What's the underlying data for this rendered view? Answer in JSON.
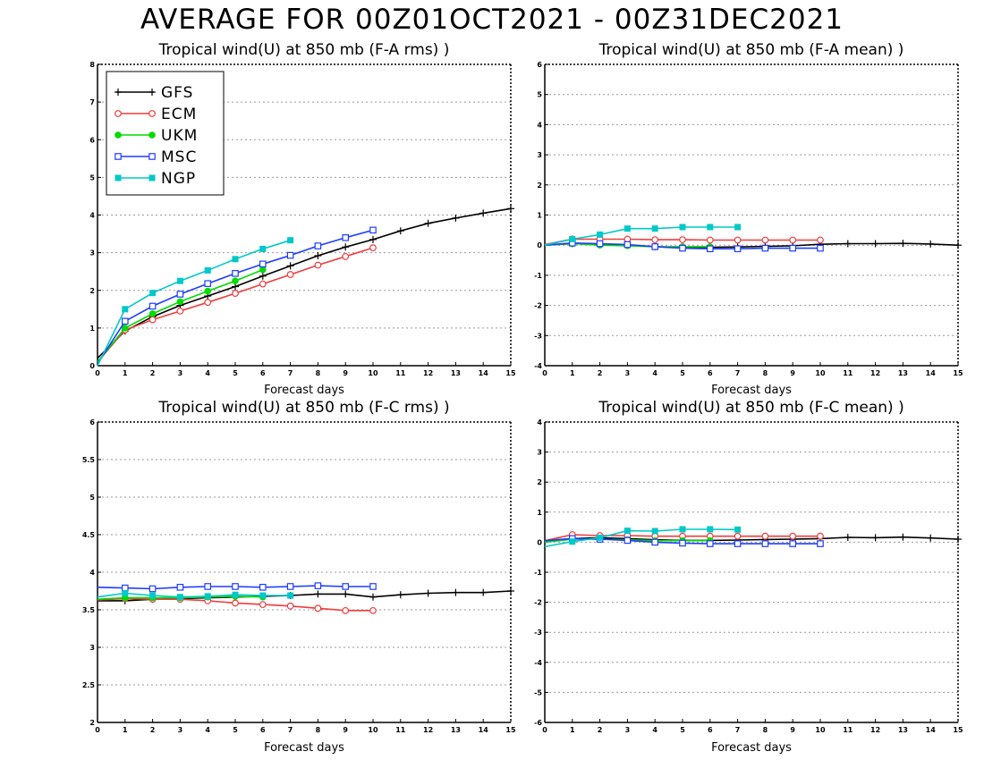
{
  "page": {
    "title": "AVERAGE FOR 00Z01OCT2021 - 00Z31DEC2021"
  },
  "legend": [
    {
      "name": "GFS",
      "color": "#000000",
      "marker": "plus"
    },
    {
      "name": "ECM",
      "color": "#f03c3c",
      "marker": "open-circle"
    },
    {
      "name": "UKM",
      "color": "#00dc00",
      "marker": "filled-circle"
    },
    {
      "name": "MSC",
      "color": "#1e3cff",
      "marker": "open-square"
    },
    {
      "name": "NGP",
      "color": "#00c8c8",
      "marker": "filled-square"
    }
  ],
  "chart_data": [
    {
      "type": "line",
      "title": "Tropical wind(U) at 850 mb (F-A rms) )",
      "xlabel": "Forecast days",
      "ylabel": "",
      "xlim": [
        0,
        15
      ],
      "ylim": [
        0,
        8
      ],
      "xticks": [
        "0",
        "1",
        "2",
        "3",
        "4",
        "5",
        "6",
        "7",
        "8",
        "9",
        "10",
        "11",
        "12",
        "13",
        "14",
        "15"
      ],
      "yticks": [
        "0",
        "1",
        "2",
        "3",
        "4",
        "5",
        "6",
        "7",
        "8"
      ],
      "grid": true,
      "legend_position": "top-left",
      "series": [
        {
          "name": "GFS",
          "x": [
            0,
            1,
            2,
            3,
            4,
            5,
            6,
            7,
            8,
            9,
            10,
            11,
            12,
            13,
            14,
            15
          ],
          "values": [
            0.2,
            0.92,
            1.3,
            1.6,
            1.85,
            2.1,
            2.38,
            2.65,
            2.92,
            3.15,
            3.35,
            3.58,
            3.78,
            3.92,
            4.05,
            4.17
          ]
        },
        {
          "name": "ECM",
          "x": [
            0,
            1,
            2,
            3,
            4,
            5,
            6,
            7,
            8,
            9,
            10
          ],
          "values": [
            0.1,
            0.95,
            1.22,
            1.45,
            1.68,
            1.92,
            2.17,
            2.42,
            2.67,
            2.9,
            3.13
          ]
        },
        {
          "name": "UKM",
          "x": [
            0,
            1,
            2,
            3,
            4,
            5,
            6
          ],
          "values": [
            0.1,
            1.0,
            1.38,
            1.7,
            1.98,
            2.25,
            2.55
          ]
        },
        {
          "name": "MSC",
          "x": [
            0,
            1,
            2,
            3,
            4,
            5,
            6,
            7,
            8,
            9,
            10
          ],
          "values": [
            0.05,
            1.18,
            1.58,
            1.9,
            2.18,
            2.45,
            2.7,
            2.93,
            3.18,
            3.4,
            3.6
          ]
        },
        {
          "name": "NGP",
          "x": [
            0,
            1,
            2,
            3,
            4,
            5,
            6,
            7
          ],
          "values": [
            0.0,
            1.5,
            1.93,
            2.25,
            2.53,
            2.83,
            3.1,
            3.33
          ]
        }
      ]
    },
    {
      "type": "line",
      "title": "Tropical wind(U) at 850 mb (F-A mean) )",
      "xlabel": "Forecast days",
      "ylabel": "",
      "xlim": [
        0,
        15
      ],
      "ylim": [
        -4,
        6
      ],
      "xticks": [
        "0",
        "1",
        "2",
        "3",
        "4",
        "5",
        "6",
        "7",
        "8",
        "9",
        "10",
        "11",
        "12",
        "13",
        "14",
        "15"
      ],
      "yticks": [
        "-4",
        "-3",
        "-2",
        "-1",
        "0",
        "1",
        "2",
        "3",
        "4",
        "5",
        "6"
      ],
      "grid": true,
      "series": [
        {
          "name": "GFS",
          "x": [
            0,
            1,
            2,
            3,
            4,
            5,
            6,
            7,
            8,
            9,
            10,
            11,
            12,
            13,
            14,
            15
          ],
          "values": [
            0.0,
            0.05,
            0.03,
            0.0,
            -0.05,
            -0.08,
            -0.07,
            -0.06,
            -0.04,
            -0.02,
            0.03,
            0.05,
            0.05,
            0.06,
            0.04,
            0.0
          ]
        },
        {
          "name": "ECM",
          "x": [
            0,
            1,
            2,
            3,
            4,
            5,
            6,
            7,
            8,
            9,
            10
          ],
          "values": [
            0.02,
            0.2,
            0.2,
            0.2,
            0.18,
            0.18,
            0.17,
            0.17,
            0.17,
            0.17,
            0.17
          ]
        },
        {
          "name": "UKM",
          "x": [
            0,
            1,
            2,
            3,
            4,
            5,
            6
          ],
          "values": [
            0.0,
            0.05,
            0.0,
            -0.02,
            -0.05,
            -0.05,
            -0.05
          ]
        },
        {
          "name": "MSC",
          "x": [
            0,
            1,
            2,
            3,
            4,
            5,
            6,
            7,
            8,
            9,
            10
          ],
          "values": [
            0.0,
            0.07,
            0.05,
            0.02,
            -0.05,
            -0.1,
            -0.12,
            -0.12,
            -0.1,
            -0.1,
            -0.1
          ]
        },
        {
          "name": "NGP",
          "x": [
            0,
            1,
            2,
            3,
            4,
            5,
            6,
            7
          ],
          "values": [
            0.0,
            0.2,
            0.35,
            0.55,
            0.55,
            0.6,
            0.6,
            0.6
          ]
        }
      ]
    },
    {
      "type": "line",
      "title": "Tropical wind(U) at 850 mb (F-C rms) )",
      "xlabel": "Forecast days",
      "ylabel": "",
      "xlim": [
        0,
        15
      ],
      "ylim": [
        2,
        6
      ],
      "xticks": [
        "0",
        "1",
        "2",
        "3",
        "4",
        "5",
        "6",
        "7",
        "8",
        "9",
        "10",
        "11",
        "12",
        "13",
        "14",
        "15"
      ],
      "yticks": [
        "2",
        "2.5",
        "3",
        "3.5",
        "4",
        "4.5",
        "5",
        "5.5",
        "6"
      ],
      "grid": true,
      "series": [
        {
          "name": "GFS",
          "x": [
            0,
            1,
            2,
            3,
            4,
            5,
            6,
            7,
            8,
            9,
            10,
            11,
            12,
            13,
            14,
            15
          ],
          "values": [
            3.62,
            3.62,
            3.64,
            3.65,
            3.66,
            3.67,
            3.68,
            3.69,
            3.71,
            3.71,
            3.67,
            3.7,
            3.72,
            3.73,
            3.73,
            3.75
          ]
        },
        {
          "name": "ECM",
          "x": [
            0,
            1,
            2,
            3,
            4,
            5,
            6,
            7,
            8,
            9,
            10
          ],
          "values": [
            3.63,
            3.65,
            3.64,
            3.64,
            3.62,
            3.59,
            3.57,
            3.55,
            3.52,
            3.49,
            3.49
          ]
        },
        {
          "name": "UKM",
          "x": [
            0,
            1,
            2,
            3,
            4,
            5,
            6
          ],
          "values": [
            3.64,
            3.66,
            3.66,
            3.66,
            3.67,
            3.68,
            3.67
          ]
        },
        {
          "name": "MSC",
          "x": [
            0,
            1,
            2,
            3,
            4,
            5,
            6,
            7,
            8,
            9,
            10
          ],
          "values": [
            3.8,
            3.79,
            3.78,
            3.8,
            3.81,
            3.81,
            3.8,
            3.81,
            3.82,
            3.81,
            3.81
          ]
        },
        {
          "name": "NGP",
          "x": [
            0,
            1,
            2,
            3,
            4,
            5,
            6,
            7
          ],
          "values": [
            3.67,
            3.72,
            3.69,
            3.67,
            3.68,
            3.7,
            3.69,
            3.69
          ]
        }
      ]
    },
    {
      "type": "line",
      "title": "Tropical wind(U) at 850 mb (F-C mean) )",
      "xlabel": "Forecast days",
      "ylabel": "",
      "xlim": [
        0,
        15
      ],
      "ylim": [
        -6,
        4
      ],
      "xticks": [
        "0",
        "1",
        "2",
        "3",
        "4",
        "5",
        "6",
        "7",
        "8",
        "9",
        "10",
        "11",
        "12",
        "13",
        "14",
        "15"
      ],
      "yticks": [
        "-6",
        "-5",
        "-4",
        "-3",
        "-2",
        "-1",
        "0",
        "1",
        "2",
        "3",
        "4"
      ],
      "grid": true,
      "series": [
        {
          "name": "GFS",
          "x": [
            0,
            1,
            2,
            3,
            4,
            5,
            6,
            7,
            8,
            9,
            10,
            11,
            12,
            13,
            14,
            15
          ],
          "values": [
            0.05,
            0.12,
            0.15,
            0.12,
            0.08,
            0.06,
            0.06,
            0.07,
            0.09,
            0.1,
            0.12,
            0.16,
            0.15,
            0.17,
            0.14,
            0.1
          ]
        },
        {
          "name": "ECM",
          "x": [
            0,
            1,
            2,
            3,
            4,
            5,
            6,
            7,
            8,
            9,
            10
          ],
          "values": [
            0.05,
            0.25,
            0.22,
            0.22,
            0.2,
            0.2,
            0.2,
            0.2,
            0.2,
            0.2,
            0.2
          ]
        },
        {
          "name": "UKM",
          "x": [
            0,
            1,
            2,
            3,
            4,
            5,
            6
          ],
          "values": [
            0.0,
            0.1,
            0.1,
            0.08,
            0.05,
            0.05,
            0.05
          ]
        },
        {
          "name": "MSC",
          "x": [
            0,
            1,
            2,
            3,
            4,
            5,
            6,
            7,
            8,
            9,
            10
          ],
          "values": [
            0.05,
            0.12,
            0.1,
            0.06,
            0.0,
            -0.03,
            -0.05,
            -0.05,
            -0.05,
            -0.05,
            -0.05
          ]
        },
        {
          "name": "NGP",
          "x": [
            0,
            1,
            2,
            3,
            4,
            5,
            6,
            7
          ],
          "values": [
            -0.15,
            0.02,
            0.15,
            0.38,
            0.37,
            0.43,
            0.43,
            0.42
          ]
        }
      ]
    }
  ]
}
